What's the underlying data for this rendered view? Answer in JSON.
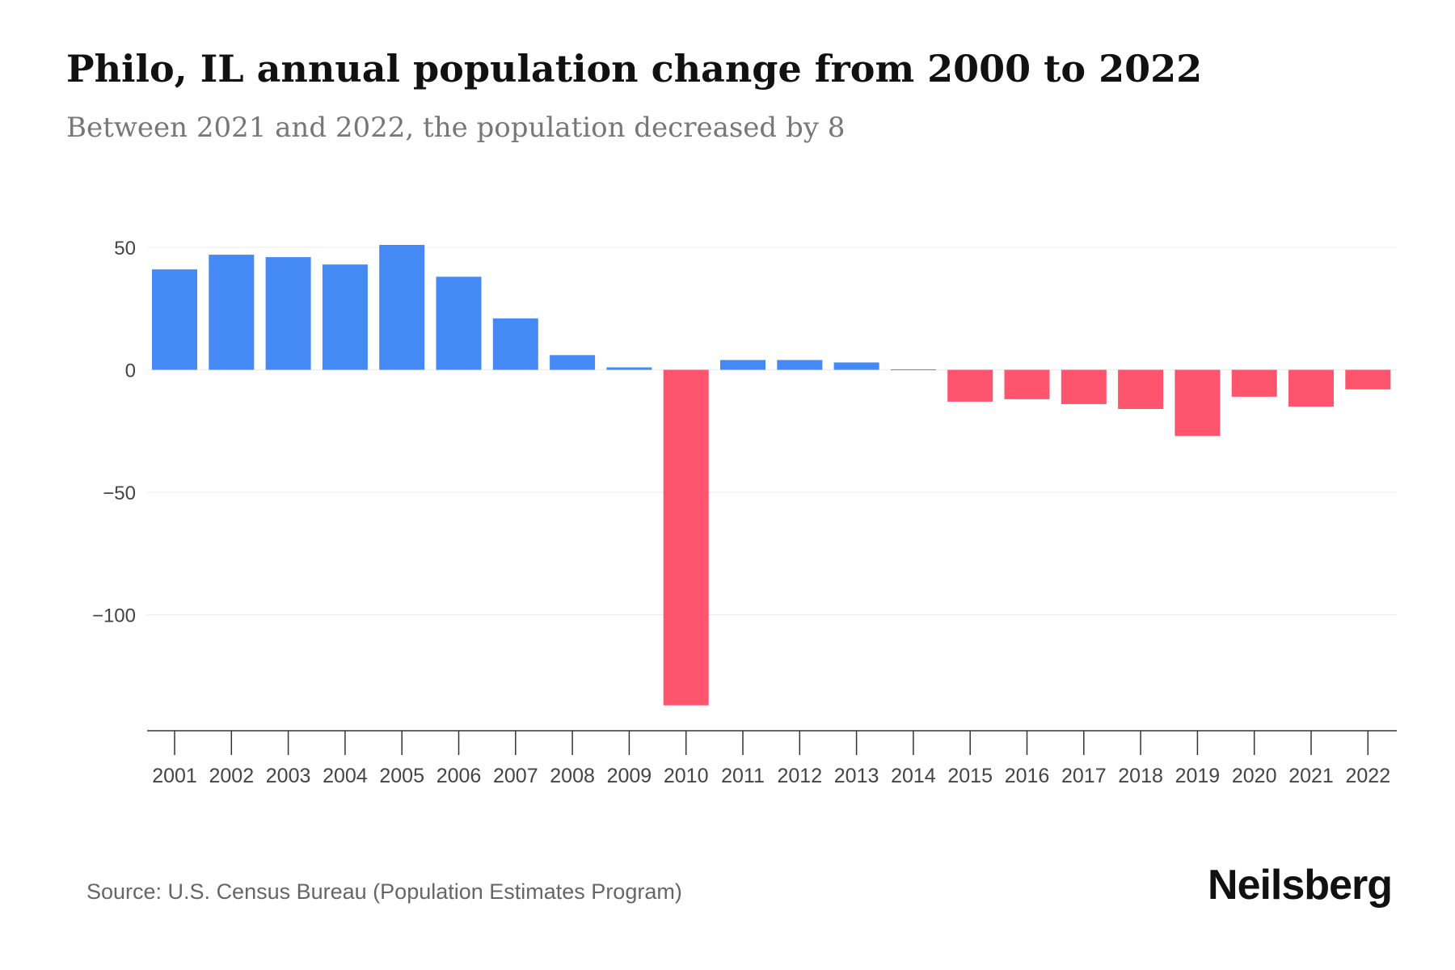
{
  "title": "Philo, IL annual population change from 2000 to 2022",
  "subtitle": "Between 2021 and 2022, the population decreased by 8",
  "source": "Source: U.S. Census Bureau (Population Estimates Program)",
  "brand": "Neilsberg",
  "colors": {
    "positive": "#4589F5",
    "negative": "#FF546E",
    "grid": "#ebebeb",
    "axis": "#333333",
    "tick_text": "#444444"
  },
  "chart_data": {
    "type": "bar",
    "title": "Philo, IL annual population change from 2000 to 2022",
    "xlabel": "",
    "ylabel": "",
    "categories": [
      "2001",
      "2002",
      "2003",
      "2004",
      "2005",
      "2006",
      "2007",
      "2008",
      "2009",
      "2010",
      "2011",
      "2012",
      "2013",
      "2014",
      "2015",
      "2016",
      "2017",
      "2018",
      "2019",
      "2020",
      "2021",
      "2022"
    ],
    "values": [
      41,
      47,
      46,
      43,
      51,
      38,
      21,
      6,
      1,
      -137,
      4,
      4,
      3,
      0,
      -13,
      -12,
      -14,
      -16,
      -27,
      -11,
      -15,
      -8
    ],
    "ylim": [
      -148,
      53
    ],
    "yticks": [
      50,
      0,
      -50,
      -100
    ],
    "ytick_labels": [
      "50",
      "0",
      "−50",
      "−100"
    ],
    "grid": true
  }
}
